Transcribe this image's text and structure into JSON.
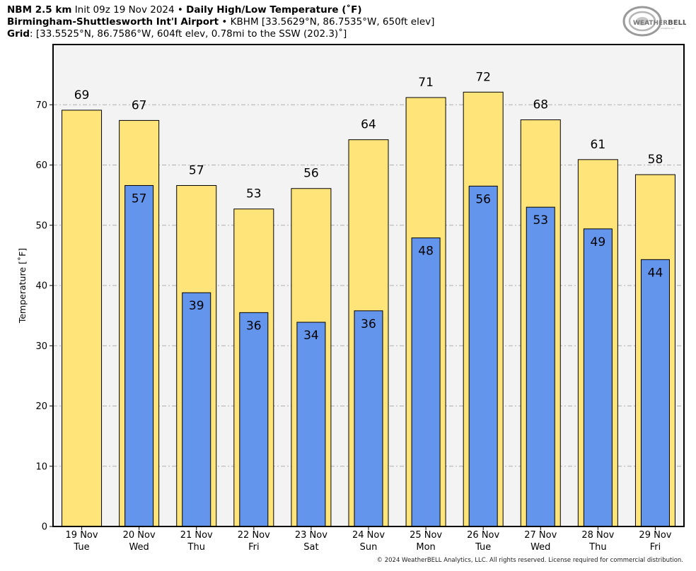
{
  "header": {
    "model": "NBM 2.5 km",
    "init": "Init 09z 19 Nov 2024",
    "bullet": "•",
    "title": "Daily High/Low Temperature (˚F)",
    "station_name": "Birmingham-Shuttlesworth Int'l Airport",
    "station_info": "KBHM [33.5629°N, 86.7535°W, 650ft elev]",
    "grid_label": "Grid",
    "grid_info": ": [33.5525°N, 86.7586°W, 604ft elev, 0.78mi to the SSW (202.3)˚]"
  },
  "logo": {
    "text_main": "WEATHER",
    "text_accent": "BELL",
    "sub": "Analytics LLC"
  },
  "copyright": "© 2024 WeatherBELL Analytics, LLC. All rights reserved. License required for commercial distribution.",
  "chart_data": {
    "type": "bar",
    "title": "Daily High/Low Temperature (˚F)",
    "xlabel": "",
    "ylabel": "Temperature [˚F]",
    "ylim": [
      0,
      80
    ],
    "yticks": [
      0,
      10,
      20,
      30,
      40,
      50,
      60,
      70
    ],
    "grid": true,
    "categories": [
      {
        "date": "19 Nov",
        "day": "Tue"
      },
      {
        "date": "20 Nov",
        "day": "Wed"
      },
      {
        "date": "21 Nov",
        "day": "Thu"
      },
      {
        "date": "22 Nov",
        "day": "Fri"
      },
      {
        "date": "23 Nov",
        "day": "Sat"
      },
      {
        "date": "24 Nov",
        "day": "Sun"
      },
      {
        "date": "25 Nov",
        "day": "Mon"
      },
      {
        "date": "26 Nov",
        "day": "Tue"
      },
      {
        "date": "27 Nov",
        "day": "Wed"
      },
      {
        "date": "28 Nov",
        "day": "Thu"
      },
      {
        "date": "29 Nov",
        "day": "Fri"
      }
    ],
    "series": [
      {
        "color": "#ffe47a",
        "values": [
          69.1,
          67.4,
          56.6,
          52.7,
          56.1,
          64.2,
          71.2,
          72.1,
          67.5,
          60.9,
          58.4
        ],
        "labels": [
          "69",
          "67",
          "57",
          "53",
          "56",
          "64",
          "71",
          "72",
          "68",
          "61",
          "58"
        ]
      },
      {
        "color": "#6495ed",
        "values": [
          null,
          56.6,
          38.8,
          35.5,
          33.9,
          35.8,
          47.9,
          56.5,
          53.0,
          49.4,
          44.3
        ],
        "labels": [
          null,
          "57",
          "39",
          "36",
          "34",
          "36",
          "48",
          "56",
          "53",
          "49",
          "44"
        ]
      }
    ],
    "colors": {
      "plot_background": "#f3f3f3",
      "grid": "#b0b0b0"
    }
  }
}
